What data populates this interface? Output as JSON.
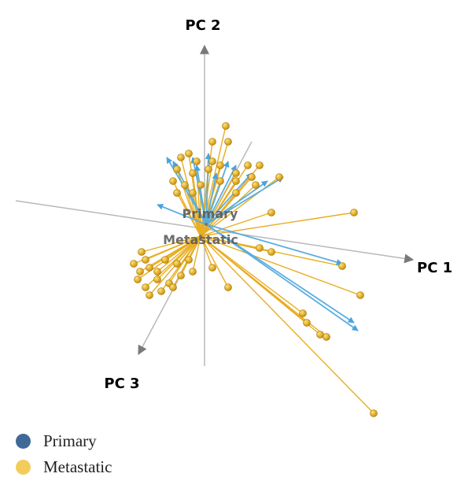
{
  "chart_data": {
    "type": "pca-3d",
    "axes": {
      "x": "PC 1",
      "y": "PC 2",
      "z": "PC 3"
    },
    "xlim": [
      -260,
      340
    ],
    "ylim": [
      -335,
      290
    ],
    "series": [
      {
        "name": "Metastatic",
        "color": "#e8ad22",
        "legend_color": "#f2cd5c",
        "centroid_x": -5,
        "centroid_y": -10,
        "x": [
          27,
          10,
          30,
          -30,
          -20,
          -10,
          10,
          20,
          55,
          70,
          -35,
          -15,
          5,
          40,
          60,
          -40,
          -25,
          -5,
          20,
          40,
          65,
          95,
          -35,
          -15,
          40,
          85,
          190,
          -80,
          -75,
          -90,
          -82,
          -70,
          -60,
          -50,
          -35,
          -20,
          -85,
          -75,
          -60,
          -45,
          -30,
          -15,
          -70,
          -55,
          -40,
          10,
          30,
          70,
          85,
          175,
          198,
          125,
          130,
          147,
          155,
          215
        ],
        "values": [
          130,
          110,
          110,
          90,
          95,
          85,
          85,
          80,
          80,
          80,
          75,
          70,
          75,
          70,
          65,
          60,
          55,
          55,
          60,
          60,
          55,
          65,
          45,
          45,
          45,
          20,
          20,
          -30,
          -40,
          -45,
          -55,
          -50,
          -55,
          -40,
          -45,
          -40,
          -65,
          -75,
          -65,
          -70,
          -60,
          -55,
          -85,
          -80,
          -75,
          -50,
          -75,
          -25,
          -30,
          -48,
          -85,
          -108,
          -120,
          -135,
          -138,
          -235
        ]
      },
      {
        "name": "Primary",
        "color": "#5aaee0",
        "legend_color": "#3f6a98",
        "centroid_x": 2,
        "centroid_y": 5,
        "x": [
          -48,
          -40,
          -15,
          5,
          30,
          40,
          60,
          80,
          100,
          -60,
          175,
          190,
          195,
          15,
          -10
        ],
        "values": [
          90,
          85,
          90,
          95,
          85,
          80,
          70,
          60,
          65,
          30,
          -45,
          -120,
          -130,
          70,
          80
        ]
      }
    ]
  }
}
